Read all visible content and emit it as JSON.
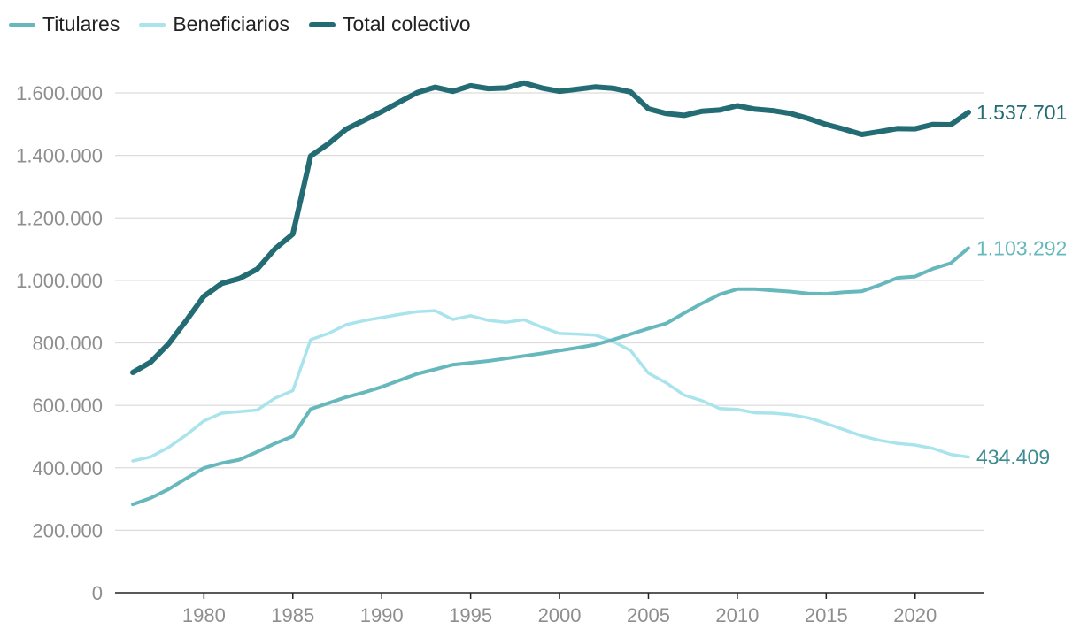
{
  "chart_data": {
    "type": "line",
    "title": "",
    "xlabel": "",
    "ylabel": "",
    "xlim": [
      1976,
      2023
    ],
    "ylim": [
      0,
      1600000
    ],
    "y_ticks": [
      0,
      200000,
      400000,
      600000,
      800000,
      1000000,
      1200000,
      1400000,
      1600000
    ],
    "y_tick_labels": [
      "0",
      "200.000",
      "400.000",
      "600.000",
      "800.000",
      "1.000.000",
      "1.200.000",
      "1.400.000",
      "1.600.000"
    ],
    "x_ticks": [
      1980,
      1985,
      1990,
      1995,
      2000,
      2005,
      2010,
      2015,
      2020
    ],
    "x_tick_labels": [
      "1980",
      "1985",
      "1990",
      "1995",
      "2000",
      "2005",
      "2010",
      "2015",
      "2020"
    ],
    "grid": true,
    "legend_position": "top-left",
    "x": [
      1976,
      1977,
      1978,
      1979,
      1980,
      1981,
      1982,
      1983,
      1984,
      1985,
      1986,
      1987,
      1988,
      1989,
      1990,
      1991,
      1992,
      1993,
      1994,
      1995,
      1996,
      1997,
      1998,
      1999,
      2000,
      2001,
      2002,
      2003,
      2004,
      2005,
      2006,
      2007,
      2008,
      2009,
      2010,
      2011,
      2012,
      2013,
      2014,
      2015,
      2016,
      2017,
      2018,
      2019,
      2020,
      2021,
      2022,
      2023
    ],
    "series": [
      {
        "name": "Titulares",
        "color": "#67b8bd",
        "stroke": "medium",
        "end_label": "1.103.292",
        "values": [
          283000,
          303000,
          331000,
          366000,
          399000,
          415000,
          426000,
          451000,
          478000,
          501000,
          588000,
          607000,
          626000,
          641000,
          659000,
          680000,
          701000,
          715000,
          730000,
          736000,
          742000,
          750000,
          758000,
          766000,
          775000,
          784000,
          794000,
          810000,
          828000,
          846000,
          862000,
          895000,
          926000,
          955000,
          972000,
          972000,
          968000,
          964000,
          958000,
          957000,
          962000,
          965000,
          985000,
          1008000,
          1012000,
          1037000,
          1055000,
          1103292
        ]
      },
      {
        "name": "Beneficiarios",
        "color": "#a9e4ec",
        "stroke": "thin",
        "end_label": "434.409",
        "values": [
          422000,
          435000,
          465000,
          505000,
          550000,
          575000,
          580000,
          585000,
          623000,
          647000,
          810000,
          830000,
          858000,
          871000,
          881000,
          891000,
          900000,
          903000,
          875000,
          887000,
          872000,
          866000,
          874000,
          850000,
          830000,
          828000,
          825000,
          805000,
          775000,
          703000,
          672000,
          633000,
          615000,
          590000,
          587000,
          576000,
          575000,
          570000,
          560000,
          542000,
          522000,
          502000,
          488000,
          478000,
          473000,
          462000,
          443000,
          434409
        ]
      },
      {
        "name": "Total colectivo",
        "color": "#246c74",
        "stroke": "thick",
        "end_label": "1.537.701",
        "values": [
          705000,
          738000,
          796000,
          871000,
          949000,
          990000,
          1006000,
          1036000,
          1101000,
          1148000,
          1398000,
          1437000,
          1484000,
          1512000,
          1540000,
          1571000,
          1601000,
          1618000,
          1605000,
          1623000,
          1614000,
          1616000,
          1632000,
          1616000,
          1605000,
          1612000,
          1619000,
          1615000,
          1603000,
          1549000,
          1534000,
          1528000,
          1541000,
          1545000,
          1559000,
          1548000,
          1543000,
          1534000,
          1518000,
          1499000,
          1484000,
          1467000,
          1476000,
          1486000,
          1485000,
          1499000,
          1498000,
          1537701
        ]
      }
    ]
  }
}
